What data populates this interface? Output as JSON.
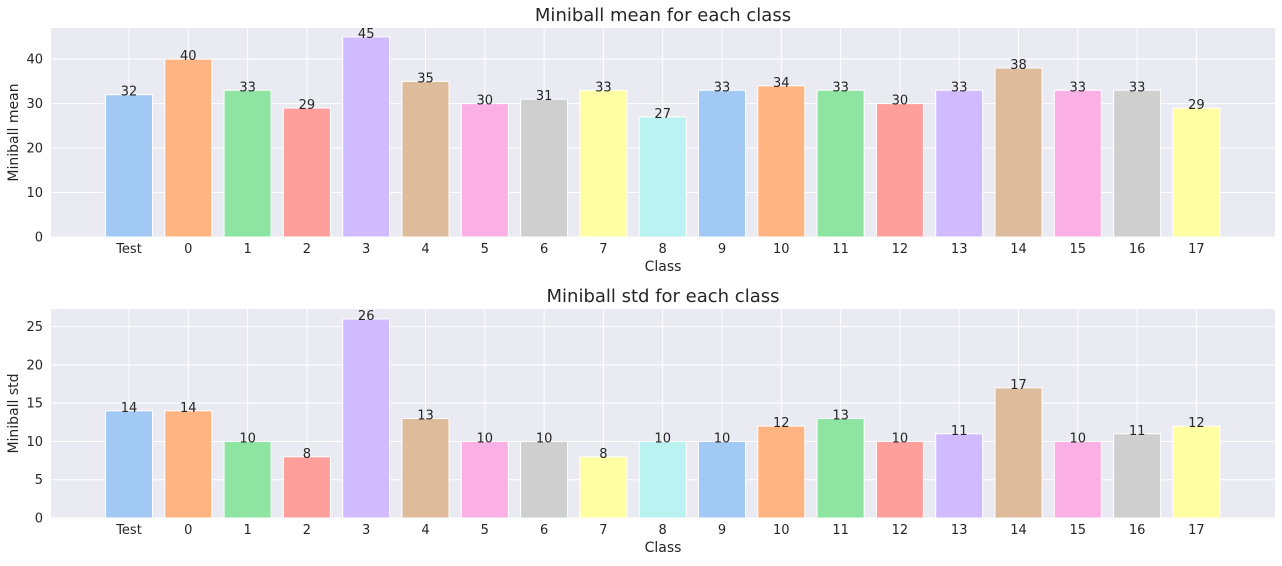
{
  "palette": [
    "#a1c9f4",
    "#ffb482",
    "#8de5a1",
    "#ff9f9b",
    "#d0bbff",
    "#debb9b",
    "#fab0e4",
    "#cfcfcf",
    "#fffea3",
    "#b9f2f0"
  ],
  "style": {
    "background": "#eaeaf2",
    "grid": "#ffffff",
    "text": "#262626"
  },
  "chart_data": [
    {
      "type": "bar",
      "title": "Miniball mean for each class",
      "xlabel": "Class",
      "ylabel": "Miniball mean",
      "categories": [
        "Test",
        "0",
        "1",
        "2",
        "3",
        "4",
        "5",
        "6",
        "7",
        "8",
        "9",
        "10",
        "11",
        "12",
        "13",
        "14",
        "15",
        "16",
        "17"
      ],
      "values": [
        32,
        40,
        33,
        29,
        45,
        35,
        30,
        31,
        33,
        27,
        33,
        34,
        33,
        30,
        33,
        38,
        33,
        33,
        29
      ],
      "ylim": [
        0,
        47
      ],
      "yticks": [
        0,
        10,
        20,
        30,
        40
      ],
      "grid": true
    },
    {
      "type": "bar",
      "title": "Miniball std for each class",
      "xlabel": "Class",
      "ylabel": "Miniball std",
      "categories": [
        "Test",
        "0",
        "1",
        "2",
        "3",
        "4",
        "5",
        "6",
        "7",
        "8",
        "9",
        "10",
        "11",
        "12",
        "13",
        "14",
        "15",
        "16",
        "17"
      ],
      "values": [
        14,
        14,
        10,
        8,
        26,
        13,
        10,
        10,
        8,
        10,
        10,
        12,
        13,
        10,
        11,
        17,
        10,
        11,
        12
      ],
      "ylim": [
        0,
        27.3
      ],
      "yticks": [
        0,
        5,
        10,
        15,
        20,
        25
      ],
      "grid": true
    }
  ]
}
